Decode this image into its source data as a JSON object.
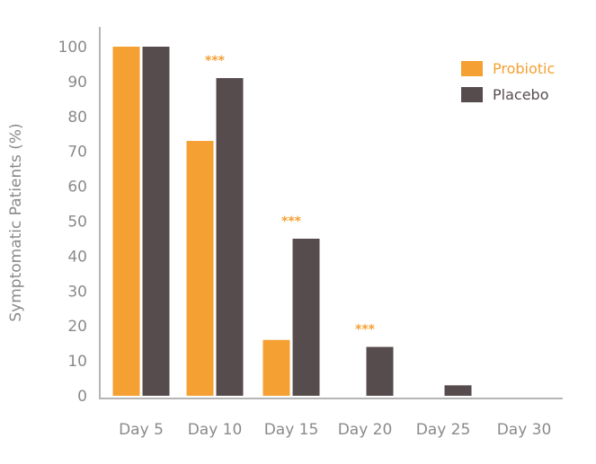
{
  "chart_data": {
    "type": "bar",
    "title": "",
    "xlabel": "",
    "ylabel": "Symptomatic Patients (%)",
    "ylim": [
      0,
      100
    ],
    "yticks": [
      0,
      10,
      20,
      30,
      40,
      50,
      60,
      70,
      80,
      90,
      100
    ],
    "grid": false,
    "legend_position": "top-right",
    "categories": [
      "Day 5",
      "Day 10",
      "Day 15",
      "Day 20",
      "Day 25",
      "Day 30"
    ],
    "series": [
      {
        "name": "Probiotic",
        "color": "#F4A032",
        "values": [
          100,
          73,
          16,
          0,
          0,
          0
        ]
      },
      {
        "name": "Placebo",
        "color": "#574C4D",
        "values": [
          100,
          91,
          45,
          14,
          3,
          0
        ]
      }
    ],
    "annotations": [
      {
        "category": "Day 10",
        "text": "***"
      },
      {
        "category": "Day 15",
        "text": "***"
      },
      {
        "category": "Day 20",
        "text": "***"
      }
    ]
  }
}
